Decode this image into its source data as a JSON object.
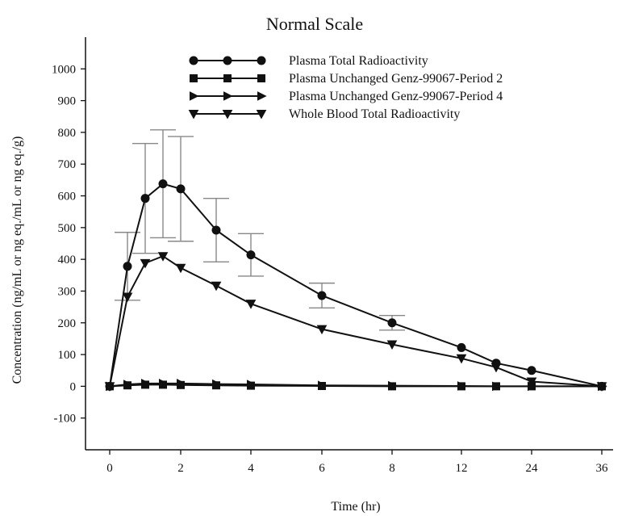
{
  "chart_data": {
    "type": "line",
    "title": "Normal Scale",
    "xlabel": "Time (hr)",
    "ylabel": "Concentration (ng/mL or ng eq./mL or ng eq./g)",
    "categories": [
      "0",
      "0.5",
      "1",
      "1.5",
      "2",
      "3",
      "4",
      "6",
      "8",
      "12",
      "16",
      "24",
      "36"
    ],
    "x_tick_labels": [
      "0",
      "2",
      "4",
      "6",
      "8",
      "12",
      "24",
      "36"
    ],
    "x_tick_at": [
      "0",
      "2",
      "4",
      "6",
      "8",
      "12",
      "24",
      "36"
    ],
    "y_ticks": [
      -100,
      0,
      100,
      200,
      300,
      400,
      500,
      600,
      700,
      800,
      900,
      1000
    ],
    "ylim": [
      -200,
      1100
    ],
    "legend_position": "top",
    "grid": false,
    "series": [
      {
        "name": "Plasma Total Radioactivity",
        "marker": "circle",
        "values": [
          0,
          378,
          592,
          638,
          622,
          492,
          414,
          286,
          200,
          122,
          73,
          50,
          0
        ],
        "error_high": [
          null,
          485,
          765,
          808,
          787,
          592,
          481,
          325,
          223,
          null,
          null,
          null,
          null
        ],
        "error_low": [
          null,
          271,
          419,
          468,
          457,
          392,
          347,
          247,
          177,
          null,
          null,
          null,
          null
        ]
      },
      {
        "name": "Plasma Unchanged Genz-99067-Period 2",
        "marker": "square",
        "values": [
          0,
          3,
          5,
          5,
          4,
          3,
          2,
          1,
          0,
          0,
          0,
          0,
          0
        ]
      },
      {
        "name": "Plasma Unchanged Genz-99067-Period 4",
        "marker": "triangle-right",
        "values": [
          0,
          6,
          9,
          9,
          9,
          7,
          6,
          3,
          2,
          1,
          0,
          0,
          0
        ]
      },
      {
        "name": "Whole Blood Total Radioactivity",
        "marker": "triangle-down",
        "values": [
          0,
          282,
          388,
          410,
          373,
          317,
          260,
          180,
          132,
          88,
          60,
          15,
          0
        ]
      }
    ]
  }
}
